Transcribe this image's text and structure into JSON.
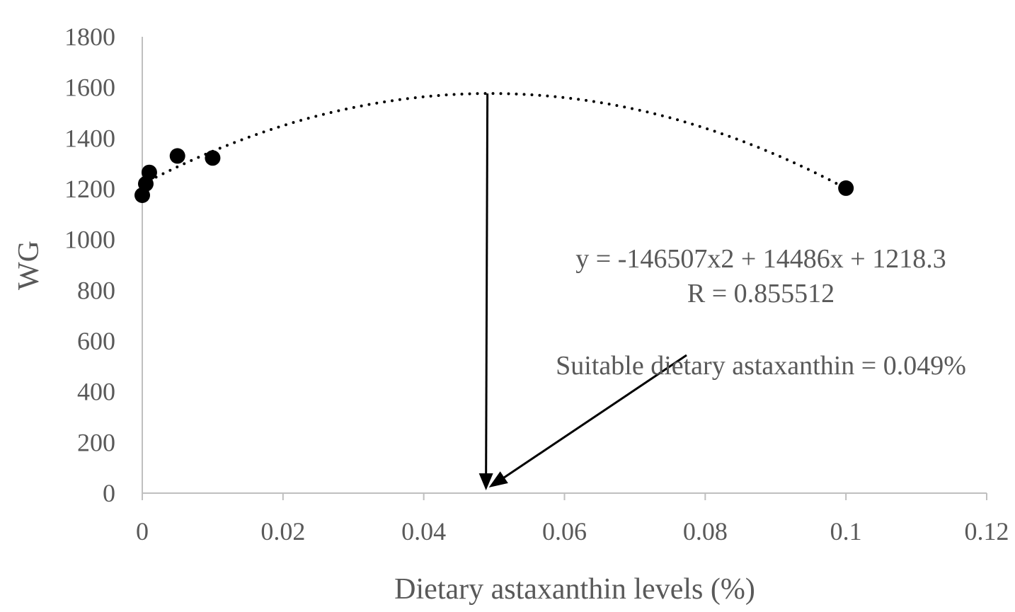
{
  "chart_data": {
    "type": "scatter",
    "title": "",
    "xlabel": "Dietary astaxanthin levels (%)",
    "ylabel": "WG",
    "xlim": [
      0,
      0.12
    ],
    "ylim": [
      0,
      1800
    ],
    "x_ticks": [
      0,
      0.02,
      0.04,
      0.06,
      0.08,
      0.1,
      0.12
    ],
    "x_tick_labels": [
      "0",
      "0.02",
      "0.04",
      "0.06",
      "0.08",
      "0.1",
      "0.12"
    ],
    "y_ticks": [
      0,
      200,
      400,
      600,
      800,
      1000,
      1200,
      1400,
      1600,
      1800
    ],
    "y_tick_labels": [
      "0",
      "200",
      "400",
      "600",
      "800",
      "1000",
      "1200",
      "1400",
      "1600",
      "1800"
    ],
    "grid": false,
    "series": [
      {
        "x": [
          0,
          0.0005,
          0.001,
          0.005,
          0.01,
          0.1
        ],
        "y": [
          1175,
          1220,
          1265,
          1330,
          1322,
          1203
        ],
        "color": "#000000"
      }
    ],
    "trendline": {
      "type": "polynomial-2",
      "coefficients": {
        "a": -146507,
        "b": 14486,
        "c": 1218.3
      },
      "x_range": [
        0,
        0.1
      ],
      "style": "dotted",
      "color": "#000000"
    },
    "annotations": {
      "equation": "y = -146507x2 + 14486x + 1218.3",
      "r_value": "R = 0.855512",
      "suitable": "Suitable dietary astaxanthin = 0.049%"
    },
    "optimum_x": 0.049
  }
}
